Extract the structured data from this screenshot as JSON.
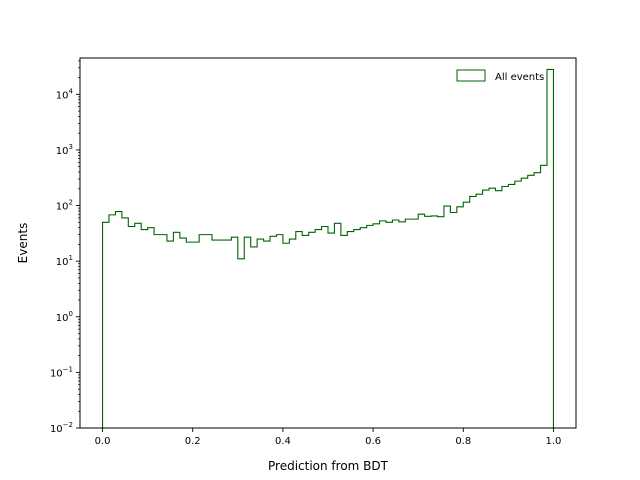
{
  "chart_data": {
    "type": "histogram",
    "xlabel": "Prediction from BDT",
    "ylabel": "Events",
    "yscale": "log",
    "xlim": [
      -0.05,
      1.05
    ],
    "ylim": [
      0.01,
      45000
    ],
    "x_ticks": [
      {
        "v": 0.0,
        "label": "0.0"
      },
      {
        "v": 0.2,
        "label": "0.2"
      },
      {
        "v": 0.4,
        "label": "0.4"
      },
      {
        "v": 0.6,
        "label": "0.6"
      },
      {
        "v": 0.8,
        "label": "0.8"
      },
      {
        "v": 1.0,
        "label": "1.0"
      }
    ],
    "y_ticks": [
      {
        "v": 0.01,
        "base": "10",
        "exp": "−2"
      },
      {
        "v": 0.1,
        "base": "10",
        "exp": "−1"
      },
      {
        "v": 1,
        "base": "10",
        "exp": "0"
      },
      {
        "v": 10,
        "base": "10",
        "exp": "1"
      },
      {
        "v": 100,
        "base": "10",
        "exp": "2"
      },
      {
        "v": 1000,
        "base": "10",
        "exp": "3"
      },
      {
        "v": 10000,
        "base": "10",
        "exp": "4"
      }
    ],
    "legend_position": "top-right",
    "series": [
      {
        "name": "All events",
        "color": "#006400",
        "bin_range": [
          0.0,
          1.0
        ],
        "counts": [
          50,
          68,
          78,
          60,
          42,
          48,
          37,
          40,
          30,
          30,
          23,
          33,
          26,
          22,
          22,
          30,
          30,
          24,
          24,
          24,
          27,
          11,
          27,
          18,
          25,
          23,
          28,
          30,
          21,
          25,
          34,
          29,
          33,
          37,
          42,
          32,
          48,
          29,
          34,
          37,
          40,
          44,
          47,
          53,
          50,
          55,
          51,
          57,
          57,
          70,
          64,
          65,
          63,
          98,
          75,
          95,
          115,
          146,
          160,
          190,
          205,
          185,
          220,
          240,
          275,
          310,
          350,
          390,
          530,
          28000
        ]
      }
    ]
  }
}
